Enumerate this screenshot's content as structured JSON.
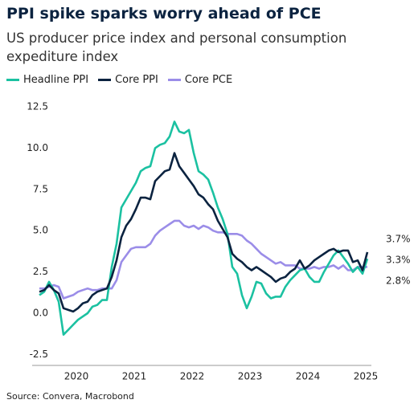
{
  "chart_data": {
    "type": "line",
    "title": "PPI spike sparks worry ahead of PCE",
    "subtitle": "US producer price index and personal consumption expediture index",
    "source": "Source: Convera, Macrobond",
    "categories": [
      null,
      null,
      null,
      null,
      null,
      null,
      null,
      null,
      "2020",
      null,
      null,
      null,
      null,
      null,
      null,
      null,
      null,
      null,
      null,
      null,
      "2021",
      null,
      null,
      null,
      null,
      null,
      null,
      null,
      null,
      null,
      null,
      null,
      "2022",
      null,
      null,
      null,
      null,
      null,
      null,
      null,
      null,
      null,
      null,
      null,
      "2023",
      null,
      null,
      null,
      null,
      null,
      null,
      null,
      null,
      null,
      null,
      null,
      "2024",
      null,
      null,
      null,
      null,
      null,
      null,
      null,
      null,
      null,
      null,
      null,
      "2025"
    ],
    "ylim": [
      -3.2,
      13.1
    ],
    "yticks": [
      {
        "value": -2.5,
        "label": "-2.5"
      },
      {
        "value": 0,
        "label": "0.0"
      },
      2.5,
      {
        "value": 5,
        "label": "5.0"
      },
      7.5,
      {
        "value": 10,
        "label": "10.0"
      },
      12.5
    ],
    "grid": false,
    "series": [
      {
        "name": "Headline PPI",
        "color": "#1bc1a1",
        "end_label": "3.3%",
        "values": [
          1.1,
          1.3,
          1.9,
          1.4,
          0.7,
          -1.3,
          -1.0,
          -0.7,
          -0.4,
          -0.2,
          0.0,
          0.4,
          0.5,
          0.8,
          0.8,
          2.8,
          4.2,
          6.4,
          6.9,
          7.4,
          7.9,
          8.6,
          8.8,
          8.9,
          10.0,
          10.2,
          10.3,
          10.7,
          11.6,
          11.0,
          10.9,
          11.1,
          9.7,
          8.6,
          8.4,
          8.1,
          7.3,
          6.4,
          5.7,
          4.8,
          2.8,
          2.4,
          1.1,
          0.3,
          1.0,
          1.9,
          1.8,
          1.2,
          0.9,
          1.0,
          1.0,
          1.6,
          2.0,
          2.3,
          2.6,
          2.7,
          2.2,
          1.9,
          1.9,
          2.5,
          3.0,
          3.5,
          3.8,
          3.4,
          3.0,
          2.5,
          2.8,
          2.4,
          3.3
        ]
      },
      {
        "name": "Core PPI",
        "color": "#0b2340",
        "end_label": "3.7%",
        "values": [
          1.3,
          1.4,
          1.7,
          1.4,
          1.2,
          0.3,
          0.2,
          0.1,
          0.3,
          0.6,
          0.7,
          1.1,
          1.3,
          1.4,
          1.5,
          2.2,
          3.2,
          4.6,
          5.3,
          5.7,
          6.3,
          7.0,
          7.0,
          6.9,
          8.0,
          8.3,
          8.6,
          8.7,
          9.7,
          8.9,
          8.5,
          8.1,
          7.7,
          7.2,
          7.0,
          6.6,
          6.3,
          5.6,
          5.1,
          4.6,
          3.6,
          3.3,
          3.1,
          2.8,
          2.6,
          2.8,
          2.6,
          2.4,
          2.2,
          1.9,
          2.1,
          2.2,
          2.5,
          2.7,
          3.2,
          2.7,
          2.9,
          3.2,
          3.4,
          3.6,
          3.8,
          3.9,
          3.7,
          3.8,
          3.8,
          3.1,
          3.2,
          2.6,
          3.7
        ]
      },
      {
        "name": "Core PCE",
        "color": "#9b8de8",
        "end_label": "2.8%",
        "values": [
          1.5,
          1.5,
          1.6,
          1.7,
          1.6,
          0.9,
          1.0,
          1.1,
          1.3,
          1.4,
          1.5,
          1.4,
          1.4,
          1.5,
          1.5,
          1.5,
          2.0,
          3.1,
          3.5,
          3.9,
          4.0,
          4.0,
          4.0,
          4.2,
          4.7,
          5.0,
          5.2,
          5.4,
          5.6,
          5.6,
          5.3,
          5.2,
          5.3,
          5.1,
          5.3,
          5.2,
          5.0,
          4.9,
          4.9,
          4.8,
          4.8,
          4.8,
          4.7,
          4.4,
          4.2,
          3.9,
          3.6,
          3.4,
          3.2,
          3.0,
          3.1,
          2.9,
          2.9,
          2.9,
          2.7,
          2.7,
          2.7,
          2.8,
          2.7,
          2.8,
          2.8,
          2.9,
          2.7,
          2.9,
          2.6,
          2.6,
          2.8,
          2.8,
          2.8
        ]
      }
    ]
  }
}
